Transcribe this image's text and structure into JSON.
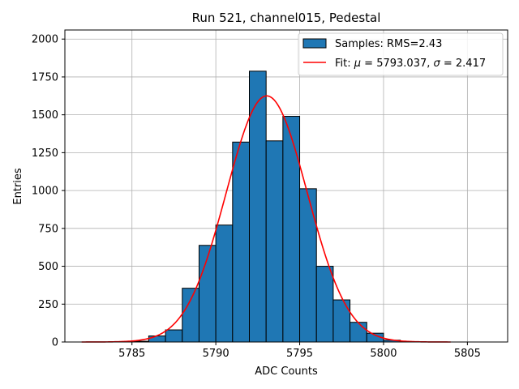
{
  "chart_data": {
    "type": "bar",
    "title": "Run 521, channel015, Pedestal",
    "xlabel": "ADC Counts",
    "ylabel": "Entries",
    "xlim": [
      5781,
      5807.4
    ],
    "ylim": [
      0,
      2060
    ],
    "xticks": [
      5785,
      5790,
      5795,
      5800,
      5805
    ],
    "yticks": [
      0,
      250,
      500,
      750,
      1000,
      1250,
      1500,
      1750,
      2000
    ],
    "grid": true,
    "bins": [
      {
        "left": 5785,
        "right": 5786,
        "value": 5
      },
      {
        "left": 5786,
        "right": 5787,
        "value": 40
      },
      {
        "left": 5787,
        "right": 5788,
        "value": 80
      },
      {
        "left": 5788,
        "right": 5789,
        "value": 355
      },
      {
        "left": 5789,
        "right": 5790,
        "value": 638
      },
      {
        "left": 5790,
        "right": 5791,
        "value": 772
      },
      {
        "left": 5791,
        "right": 5792,
        "value": 1320
      },
      {
        "left": 5792,
        "right": 5793,
        "value": 1788
      },
      {
        "left": 5793,
        "right": 5794,
        "value": 1328
      },
      {
        "left": 5794,
        "right": 5795,
        "value": 1490
      },
      {
        "left": 5795,
        "right": 5796,
        "value": 1012
      },
      {
        "left": 5796,
        "right": 5797,
        "value": 500
      },
      {
        "left": 5797,
        "right": 5798,
        "value": 278
      },
      {
        "left": 5798,
        "right": 5799,
        "value": 130
      },
      {
        "left": 5799,
        "right": 5800,
        "value": 58
      },
      {
        "left": 5800,
        "right": 5801,
        "value": 12
      }
    ],
    "fit": {
      "type": "gaussian",
      "mu": 5793.037,
      "sigma": 2.417,
      "amplitude": 1625,
      "x_range": [
        5782,
        5804
      ]
    },
    "legend": {
      "position": "top-right",
      "entries": [
        {
          "label": "Samples: RMS=2.43",
          "kind": "patch"
        },
        {
          "label_prefix": "Fit: ",
          "mu_symbol": "μ",
          "mu_text": " = 5793.037, ",
          "sigma_symbol": "σ",
          "sigma_text": " = 2.417",
          "kind": "line"
        }
      ]
    },
    "colors": {
      "bar_fill": "#1f77b4",
      "bar_edge": "#000000",
      "fit_line": "#ff0000",
      "grid": "#b0b0b0"
    }
  }
}
